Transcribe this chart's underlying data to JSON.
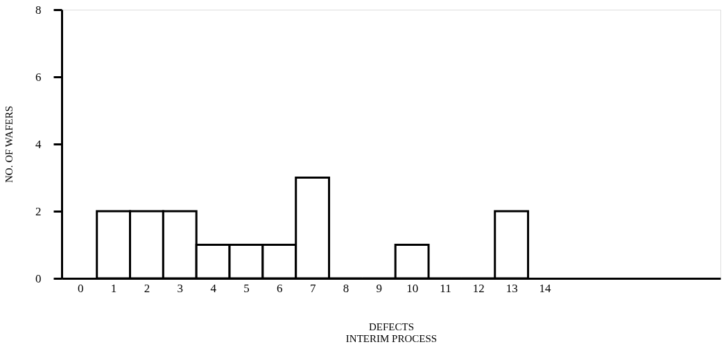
{
  "chart_data": {
    "type": "histogram",
    "xlabel": "DEFECTS",
    "ylabel": "NO. OF WAFERS",
    "annotations": [
      "INTERIM PROCESS"
    ],
    "bins": [
      0.5,
      1.5,
      2.5,
      3.5,
      4.5,
      5.5,
      6.5,
      7.5,
      8.5,
      9.5,
      10.5,
      11.5,
      12.5,
      13.5
    ],
    "values": [
      2,
      2,
      2,
      1,
      1,
      1,
      3,
      0,
      0,
      1,
      0,
      0,
      2
    ],
    "color": "#000000",
    "xlim": [
      -0.56,
      19.3
    ],
    "xticks": [
      0,
      1,
      2,
      3,
      4,
      5,
      6,
      7,
      8,
      9,
      10,
      11,
      12,
      13,
      14
    ],
    "ylim": [
      0,
      8
    ],
    "yticks": [
      0,
      2,
      4,
      6,
      8
    ],
    "grid": false
  }
}
